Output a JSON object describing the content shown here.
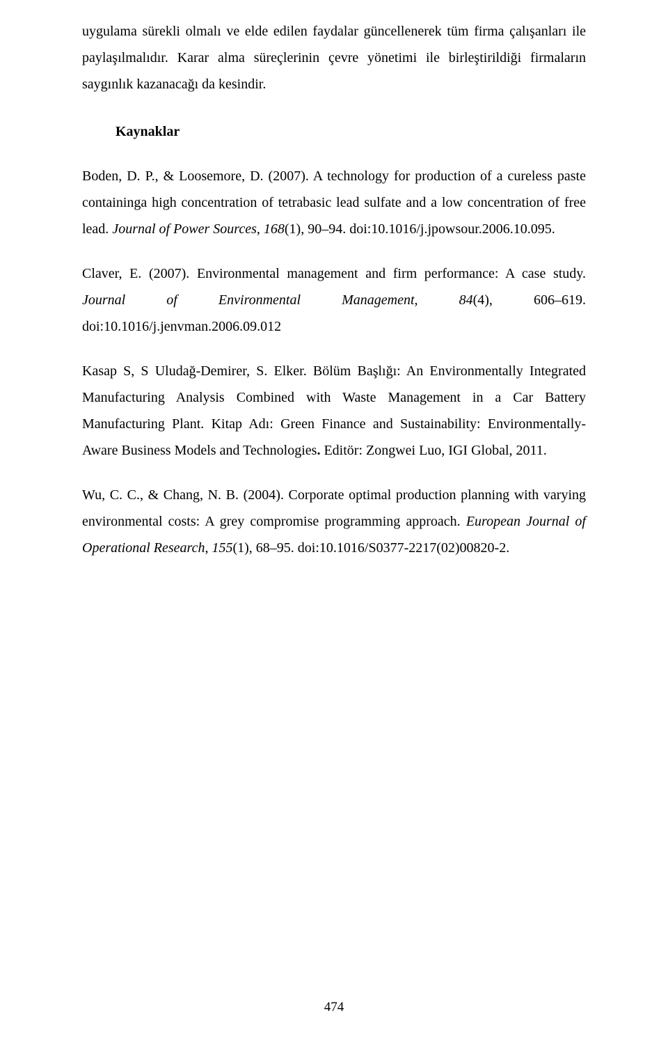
{
  "intro_para": "uygulama sürekli olmalı ve elde edilen faydalar güncellenerek tüm firma çalışanları ile paylaşılmalıdır. Karar alma süreçlerinin çevre yönetimi ile birleştirildiği firmaların saygınlık kazanacağı da kesindir.",
  "heading": "Kaynaklar",
  "ref1_a": "Boden, D. P., & Loosemore, D. (2007). A technology for production of a cureless paste containinga high concentration of tetrabasic lead sulfate and a low concentration of free lead. ",
  "ref1_i": "Journal of Power Sources",
  "ref1_b": ", ",
  "ref1_vol": "168",
  "ref1_c": "(1), 90–94. doi:10.1016/j.jpowsour.2006.10.095.",
  "ref2_a": "Claver, E. (2007). Environmental management and firm performance: A case study. ",
  "ref2_i": "Journal of Environmental Management",
  "ref2_b": ", ",
  "ref2_vol": "84",
  "ref2_c": "(4), 606–619. doi:10.1016/j.jenvman.2006.09.012",
  "ref3_a": "Kasap S, S Uludağ-Demirer, S. Elker. Bölüm Başlığı: An Environmentally Integrated Manufacturing Analysis Combined with Waste Management in a Car Battery Manufacturing Plant. Kitap Adı: Green Finance and Sustainability: Environmentally-Aware Business Models and Technologies",
  "ref3_bold": ". ",
  "ref3_b": "Editör: Zongwei Luo, IGI Global, 2011.",
  "ref4_a": "Wu, C. C., & Chang, N. B. (2004). Corporate optimal production planning with varying environmental costs: A grey compromise programming approach. ",
  "ref4_i": "European Journal of Operational Research",
  "ref4_b": ", ",
  "ref4_vol": "155",
  "ref4_c": "(1), 68–95. doi:10.1016/S0377-2217(02)00820-2.",
  "page_number": "474"
}
